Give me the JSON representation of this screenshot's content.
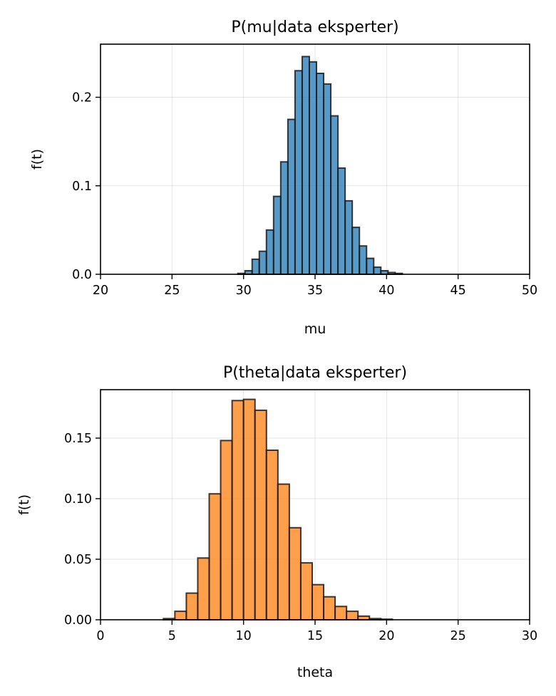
{
  "chart_data": [
    {
      "type": "bar",
      "title": "P(mu|data eksperter)",
      "xlabel": "mu",
      "ylabel": "f(t)",
      "xlim": [
        20,
        50
      ],
      "ylim": [
        0,
        0.26
      ],
      "xticks": [
        "20",
        "25",
        "30",
        "35",
        "40",
        "45",
        "50"
      ],
      "xtick_values": [
        20,
        25,
        30,
        35,
        40,
        45,
        50
      ],
      "yticks": [
        "0.0",
        "0.1",
        "0.2"
      ],
      "ytick_values": [
        0.0,
        0.1,
        0.2
      ],
      "grid": true,
      "color": "#1f77b4",
      "bin_start": 29.6,
      "bin_width": 0.5,
      "values": [
        0.001,
        0.004,
        0.017,
        0.026,
        0.05,
        0.088,
        0.127,
        0.175,
        0.23,
        0.246,
        0.24,
        0.227,
        0.215,
        0.179,
        0.12,
        0.083,
        0.053,
        0.032,
        0.018,
        0.008,
        0.004,
        0.002,
        0.001
      ]
    },
    {
      "type": "bar",
      "title": "P(theta|data eksperter)",
      "xlabel": "theta",
      "ylabel": "f(t)",
      "xlim": [
        0,
        30
      ],
      "ylim": [
        0,
        0.19
      ],
      "xticks": [
        "0",
        "5",
        "10",
        "15",
        "20",
        "25",
        "30"
      ],
      "xtick_values": [
        0,
        5,
        10,
        15,
        20,
        25,
        30
      ],
      "yticks": [
        "0.00",
        "0.05",
        "0.10",
        "0.15"
      ],
      "ytick_values": [
        0.0,
        0.05,
        0.1,
        0.15
      ],
      "grid": true,
      "color": "#ff7f0e",
      "bin_start": 4.4,
      "bin_width": 0.8,
      "values": [
        0.001,
        0.007,
        0.022,
        0.051,
        0.104,
        0.148,
        0.181,
        0.182,
        0.173,
        0.14,
        0.112,
        0.076,
        0.047,
        0.029,
        0.019,
        0.011,
        0.007,
        0.003,
        0.001,
        0.0005
      ]
    }
  ]
}
